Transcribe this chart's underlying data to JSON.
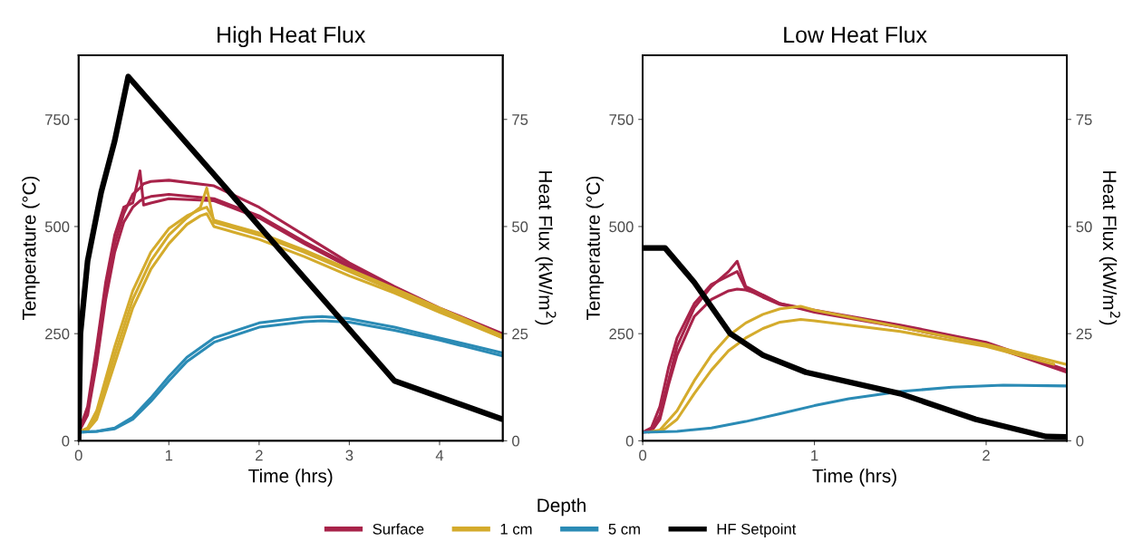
{
  "chart_data": [
    {
      "type": "line",
      "title": "High Heat Flux",
      "xlabel": "Time (hrs)",
      "ylabel": "Temperature (°C)",
      "y2label": "Heat Flux (kW/m$^{2}$)",
      "xlim": [
        0,
        4.7
      ],
      "xticks": [
        0,
        1,
        2,
        3,
        4
      ],
      "ylim": [
        0,
        900
      ],
      "yticks": [
        0,
        250,
        500,
        750
      ],
      "y2lim": [
        0,
        90
      ],
      "y2ticks": [
        0,
        25,
        50,
        75
      ],
      "grid": false,
      "legend": "bottom",
      "legend_title": "Depth",
      "line_style": "solid",
      "marker": "none",
      "series": [
        {
          "name": "Surface",
          "color": "#a8234a",
          "x": [
            0,
            0.1,
            0.2,
            0.3,
            0.4,
            0.5,
            0.6,
            0.68,
            0.72,
            0.8,
            1.0,
            1.5,
            2.0,
            2.5,
            3.0,
            3.5,
            4.0,
            4.7
          ],
          "values": [
            20,
            80,
            220,
            370,
            480,
            545,
            555,
            630,
            550,
            555,
            565,
            560,
            520,
            460,
            405,
            350,
            305,
            245
          ]
        },
        {
          "color": "#a8234a",
          "x": [
            0,
            0.1,
            0.2,
            0.3,
            0.4,
            0.5,
            0.6,
            0.68,
            0.72,
            0.8,
            1.0,
            1.5,
            2.0,
            2.5,
            3.0,
            3.5,
            4.0,
            4.7
          ],
          "values": [
            20,
            70,
            200,
            350,
            460,
            530,
            575,
            590,
            600,
            605,
            608,
            595,
            545,
            480,
            415,
            360,
            310,
            250
          ]
        },
        {
          "color": "#a8234a",
          "x": [
            0,
            0.1,
            0.2,
            0.3,
            0.4,
            0.5,
            0.6,
            0.68,
            0.72,
            0.8,
            1.0,
            1.5,
            2.0,
            2.5,
            3.0,
            3.5,
            4.0,
            4.7
          ],
          "values": [
            20,
            60,
            180,
            330,
            440,
            510,
            545,
            560,
            565,
            570,
            575,
            565,
            525,
            465,
            410,
            355,
            305,
            245
          ]
        },
        {
          "name": "1 cm",
          "color": "#d4ab2c",
          "x": [
            0,
            0.1,
            0.2,
            0.4,
            0.6,
            0.8,
            1.0,
            1.2,
            1.35,
            1.42,
            1.5,
            2.0,
            2.5,
            3.0,
            3.5,
            4.0,
            4.7
          ],
          "values": [
            20,
            25,
            60,
            200,
            330,
            420,
            480,
            520,
            545,
            590,
            510,
            480,
            440,
            395,
            350,
            305,
            240
          ]
        },
        {
          "color": "#d4ab2c",
          "x": [
            0,
            0.1,
            0.2,
            0.4,
            0.6,
            0.8,
            1.0,
            1.2,
            1.35,
            1.42,
            1.5,
            2.0,
            2.5,
            3.0,
            3.5,
            4.0,
            4.7
          ],
          "values": [
            20,
            25,
            50,
            180,
            310,
            400,
            460,
            505,
            525,
            530,
            500,
            470,
            430,
            385,
            345,
            300,
            240
          ]
        },
        {
          "color": "#d4ab2c",
          "x": [
            0,
            0.1,
            0.2,
            0.4,
            0.6,
            0.8,
            1.0,
            1.2,
            1.35,
            1.42,
            1.5,
            2.0,
            2.5,
            3.0,
            3.5,
            4.0,
            4.7
          ],
          "values": [
            20,
            30,
            70,
            220,
            350,
            440,
            495,
            525,
            540,
            545,
            515,
            485,
            445,
            400,
            355,
            310,
            245
          ]
        },
        {
          "name": "5 cm",
          "color": "#2b8bb5",
          "x": [
            0,
            0.2,
            0.4,
            0.6,
            0.8,
            1.0,
            1.2,
            1.5,
            2.0,
            2.5,
            2.7,
            3.0,
            3.5,
            4.0,
            4.7
          ],
          "values": [
            20,
            22,
            30,
            55,
            100,
            150,
            195,
            240,
            275,
            288,
            290,
            285,
            265,
            240,
            205
          ]
        },
        {
          "color": "#2b8bb5",
          "x": [
            0,
            0.2,
            0.4,
            0.6,
            0.8,
            1.0,
            1.2,
            1.5,
            2.0,
            2.5,
            2.7,
            3.0,
            3.5,
            4.0,
            4.7
          ],
          "values": [
            20,
            22,
            28,
            50,
            92,
            140,
            185,
            230,
            265,
            278,
            280,
            277,
            258,
            235,
            198
          ]
        },
        {
          "name": "HF Setpoint",
          "color": "#000000",
          "axis": "y2",
          "x": [
            0,
            0.02,
            0.1,
            0.25,
            0.4,
            0.55,
            3.5,
            4.7
          ],
          "values": [
            0,
            25,
            42,
            58,
            70,
            85,
            14,
            5
          ]
        }
      ]
    },
    {
      "type": "line",
      "title": "Low Heat Flux",
      "xlabel": "Time (hrs)",
      "ylabel": "Temperature (°C)",
      "y2label": "Heat Flux (kW/m$^{2}$)",
      "xlim": [
        0,
        2.47
      ],
      "xticks": [
        0,
        1,
        2
      ],
      "ylim": [
        0,
        900
      ],
      "yticks": [
        0,
        250,
        500,
        750
      ],
      "y2lim": [
        0,
        90
      ],
      "y2ticks": [
        0,
        25,
        50,
        75
      ],
      "grid": false,
      "line_style": "solid",
      "marker": "none",
      "series": [
        {
          "color": "#a8234a",
          "x": [
            0,
            0.05,
            0.1,
            0.15,
            0.2,
            0.3,
            0.4,
            0.5,
            0.55,
            0.6,
            0.7,
            0.8,
            1.0,
            1.5,
            2.0,
            2.47
          ],
          "values": [
            20,
            25,
            60,
            140,
            220,
            310,
            360,
            395,
            419,
            360,
            340,
            320,
            305,
            270,
            230,
            165
          ]
        },
        {
          "color": "#a8234a",
          "x": [
            0,
            0.05,
            0.1,
            0.15,
            0.2,
            0.3,
            0.4,
            0.5,
            0.55,
            0.6,
            0.7,
            0.8,
            1.0,
            1.5,
            2.0,
            2.47
          ],
          "values": [
            20,
            30,
            80,
            170,
            240,
            320,
            365,
            385,
            395,
            355,
            335,
            318,
            303,
            268,
            228,
            162
          ]
        },
        {
          "color": "#a8234a",
          "x": [
            0,
            0.05,
            0.1,
            0.15,
            0.2,
            0.3,
            0.4,
            0.5,
            0.55,
            0.6,
            0.7,
            0.8,
            1.0,
            1.5,
            2.0,
            2.47
          ],
          "values": [
            20,
            22,
            50,
            130,
            200,
            290,
            330,
            350,
            354,
            352,
            340,
            320,
            300,
            265,
            225,
            160
          ]
        },
        {
          "color": "#d4ab2c",
          "x": [
            0.03,
            0.1,
            0.2,
            0.3,
            0.4,
            0.5,
            0.6,
            0.7,
            0.8,
            0.92,
            1.0,
            1.5,
            2.0,
            2.47
          ],
          "values": [
            20,
            25,
            70,
            140,
            200,
            245,
            275,
            295,
            308,
            314,
            305,
            265,
            225,
            178
          ]
        },
        {
          "color": "#d4ab2c",
          "x": [
            0.08,
            0.13,
            0.2,
            0.3,
            0.4,
            0.5,
            0.6,
            0.7,
            0.8,
            0.92,
            1.0,
            1.5,
            2.0,
            2.4
          ],
          "values": [
            20,
            28,
            50,
            110,
            165,
            210,
            240,
            262,
            277,
            283,
            280,
            255,
            220,
            178
          ]
        },
        {
          "color": "#2b8bb5",
          "x": [
            0,
            0.2,
            0.4,
            0.6,
            0.8,
            1.0,
            1.2,
            1.5,
            1.8,
            2.1,
            2.47
          ],
          "values": [
            20,
            22,
            30,
            45,
            63,
            82,
            98,
            115,
            125,
            130,
            128
          ]
        },
        {
          "color": "#000000",
          "axis": "y2",
          "x": [
            0,
            0.13,
            0.3,
            0.51,
            0.7,
            0.95,
            1.5,
            1.94,
            2.35,
            2.47
          ],
          "values": [
            45,
            45,
            37,
            25,
            20,
            16,
            11,
            5,
            1,
            0.9
          ]
        }
      ]
    }
  ]
}
